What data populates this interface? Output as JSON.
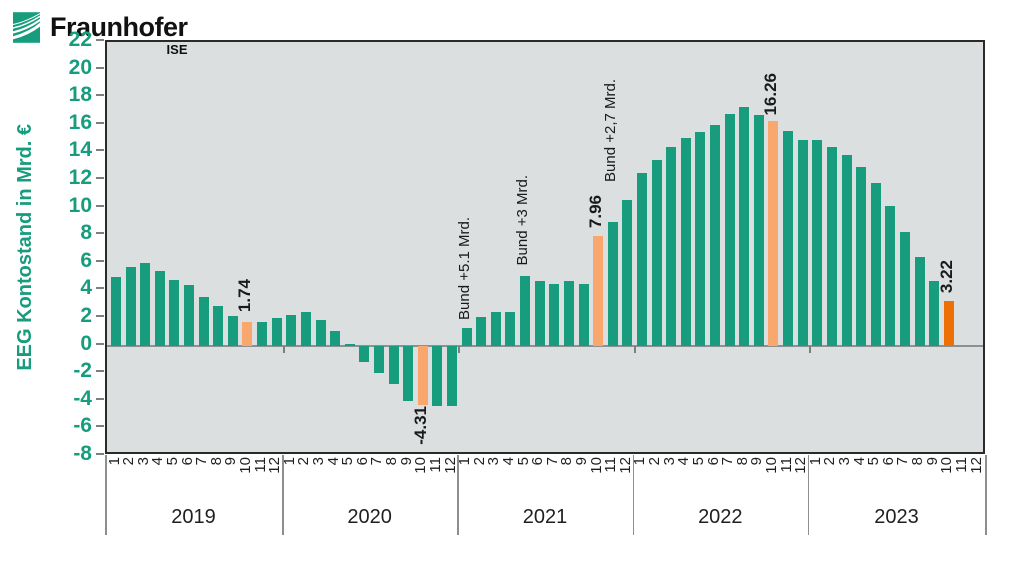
{
  "logo": {
    "brand": "Fraunhofer",
    "institute": "ISE"
  },
  "colors": {
    "bar_green": "#179C7D",
    "bar_orange_light": "#F9A76C",
    "bar_orange_strong": "#EC7004",
    "axis_text_green": "#179C7D",
    "plot_background": "#DCDFE0",
    "text_black": "#1f1f1f"
  },
  "chart_data": {
    "type": "bar",
    "title": "",
    "ylabel": "EEG Kontostand in Mrd. €",
    "xlabel": "",
    "ylim": [
      -8,
      22
    ],
    "ytick_step": 2,
    "grid": false,
    "legend": false,
    "years": [
      "2019",
      "2020",
      "2021",
      "2022",
      "2023"
    ],
    "month_labels": [
      "1",
      "2",
      "3",
      "4",
      "5",
      "6",
      "7",
      "8",
      "9",
      "10",
      "11",
      "12"
    ],
    "series": [
      {
        "name": "EEG Kontostand in Mrd. €",
        "values_by_year": {
          "2019": [
            5.0,
            5.7,
            5.95,
            5.4,
            4.75,
            4.4,
            3.5,
            2.9,
            2.15,
            1.74,
            1.7,
            2.0
          ],
          "2020": [
            2.2,
            2.4,
            1.85,
            1.05,
            0.15,
            -1.2,
            -2.0,
            -2.8,
            -4.0,
            -4.31,
            -4.4,
            -4.4
          ],
          "2021": [
            1.25,
            2.1,
            2.45,
            2.45,
            5.05,
            4.7,
            4.45,
            4.7,
            4.45,
            7.96,
            8.95,
            10.55
          ],
          "2022": [
            12.5,
            13.45,
            14.4,
            15.05,
            15.5,
            15.95,
            16.8,
            17.3,
            16.7,
            16.26,
            15.55,
            14.9
          ],
          "2023": [
            14.9,
            14.4,
            13.8,
            12.95,
            11.75,
            10.15,
            8.25,
            6.45,
            4.65,
            3.22,
            null,
            null
          ]
        }
      }
    ],
    "highlights": [
      {
        "year": "2019",
        "month": 10,
        "color": "#F9A76C"
      },
      {
        "year": "2020",
        "month": 10,
        "color": "#F9A76C"
      },
      {
        "year": "2021",
        "month": 10,
        "color": "#F9A76C"
      },
      {
        "year": "2022",
        "month": 10,
        "color": "#F9A76C"
      },
      {
        "year": "2023",
        "month": 10,
        "color": "#EC7004"
      }
    ],
    "annotations": [
      {
        "year": "2019",
        "month": 10,
        "text": "1.74",
        "bold": true,
        "side": "above",
        "gap": 8
      },
      {
        "year": "2020",
        "month": 10,
        "text": "-4.31",
        "bold": true,
        "side": "below",
        "gap": 3
      },
      {
        "year": "2021",
        "month": 1,
        "text": "Bund +5.1 Mrd.",
        "bold": false,
        "side": "above",
        "gap": 6
      },
      {
        "year": "2021",
        "month": 5,
        "text": "Bund +3 Mrd.",
        "bold": false,
        "side": "above",
        "gap": 8
      },
      {
        "year": "2021",
        "month": 10,
        "text": "7.96",
        "bold": true,
        "side": "above",
        "gap": 6
      },
      {
        "year": "2021",
        "month": 11,
        "text": "Bund +2,7 Mrd.",
        "bold": false,
        "side": "above",
        "gap": 38
      },
      {
        "year": "2022",
        "month": 10,
        "text": "16.26",
        "bold": true,
        "side": "above",
        "gap": 4
      },
      {
        "year": "2023",
        "month": 10,
        "text": "3.22",
        "bold": true,
        "side": "above",
        "gap": 6
      }
    ]
  }
}
